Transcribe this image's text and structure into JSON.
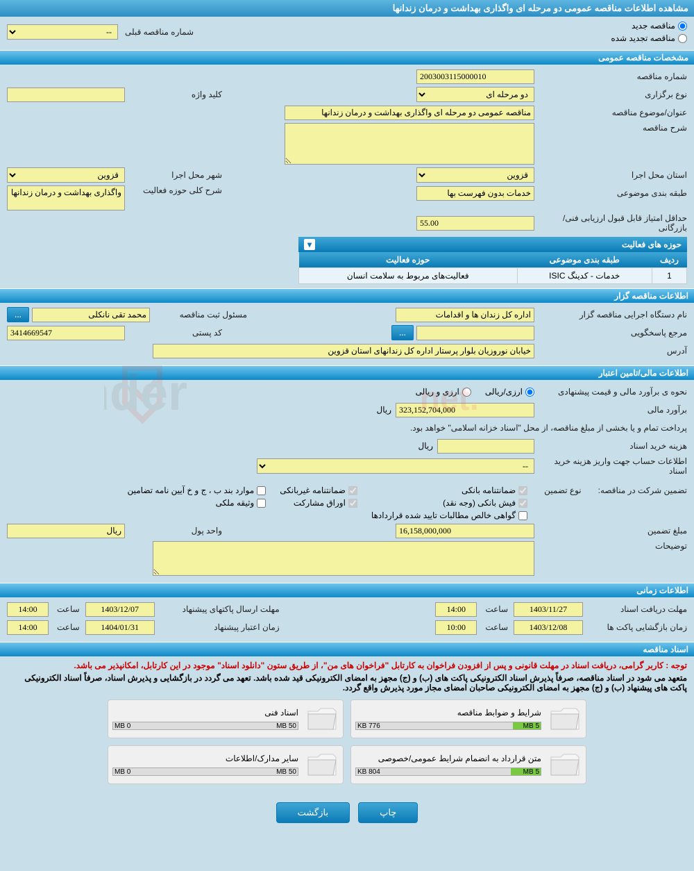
{
  "page_title": "مشاهده اطلاعات مناقصه عمومی دو مرحله ای واگذاری بهداشت و درمان زندانها",
  "tender_type": {
    "new_label": "مناقصه جدید",
    "renewed_label": "مناقصه تجدید شده",
    "prev_number_label": "شماره مناقصه قبلی",
    "prev_number_value": "--"
  },
  "general": {
    "header": "مشخصات مناقصه عمومی",
    "number_label": "شماره مناقصه",
    "number_value": "2003003115000010",
    "type_label": "نوع برگزاری",
    "type_value": "دو مرحله ای",
    "keyword_label": "کلید واژه",
    "keyword_value": "",
    "title_label": "عنوان/موضوع مناقصه",
    "title_value": "مناقصه عمومی دو مرحله ای واگذاری بهداشت و درمان زندانها",
    "description_label": "شرح مناقصه",
    "description_value": "",
    "province_label": "استان محل اجرا",
    "province_value": "قزوین",
    "city_label": "شهر محل اجرا",
    "city_value": "قزوین",
    "classification_label": "طبقه بندی موضوعی",
    "classification_value": "خدمات بدون فهرست بها",
    "activity_scope_label": "شرح کلی حوزه فعالیت",
    "activity_scope_value": "واگذاری بهداشت و درمان زندانها",
    "min_score_label": "حداقل امتیاز قابل قبول ارزیابی فنی/بازرگانی",
    "min_score_value": "55.00",
    "activity_areas_header": "حوزه های فعالیت",
    "activity_table": {
      "col_row": "ردیف",
      "col_classification": "طبقه بندی موضوعی",
      "col_area": "حوزه فعالیت",
      "rows": [
        {
          "row": "1",
          "classification": "خدمات - کدینگ ISIC",
          "area": "فعالیت‌های مربوط به سلامت انسان"
        }
      ]
    }
  },
  "buyer": {
    "header": "اطلاعات مناقصه گزار",
    "org_label": "نام دستگاه اجرایی مناقصه گزار",
    "org_value": "اداره کل زندان ها و اقدامات",
    "registrar_label": "مسئول ثبت مناقصه",
    "registrar_value": "محمد تقی نانکلی",
    "support_label": "مرجع پاسخگویی",
    "postcode_label": "کد پستی",
    "postcode_value": "3414669547",
    "address_label": "آدرس",
    "address_value": "خیابان نوروزیان بلوار پرستار اداره کل زندانهای استان قزوین",
    "ellipsis": "..."
  },
  "financial": {
    "header": "اطلاعات مالی/تامین اعتبار",
    "estimate_method_label": "نحوه ی برآورد مالی و قیمت پیشنهادی",
    "estimate_rial_label": "ارزی/ریالی",
    "estimate_fx_label": "ارزی و ریالی",
    "estimate_label": "برآورد مالی",
    "estimate_value": "323,152,704,000",
    "currency_label": "ریال",
    "payment_note": "پرداخت تمام و یا بخشی از مبلغ مناقصه، از محل \"اسناد خزانه اسلامی\" خواهد بود.",
    "doc_cost_label": "هزینه خرید اسناد",
    "doc_cost_value": "",
    "account_label": "اطلاعات حساب جهت واریز هزینه خرید اسناد",
    "account_value": "--",
    "guarantee_header": "تضمین شرکت در مناقصه:",
    "guarantee_type_label": "نوع تضمین",
    "chk_bank_guarantee": "ضمانتنامه بانکی",
    "chk_nonbank_guarantee": "ضمانتنامه غیربانکی",
    "chk_bond_bjhkh": "موارد بند ب ، ج و خ آیین نامه تضامین",
    "chk_bank_receipt": "فیش بانکی (وجه نقد)",
    "chk_securities": "اوراق مشارکت",
    "chk_property": "وثیقه ملکی",
    "chk_contract_receivable": "گواهی خالص مطالبات تایید شده قراردادها",
    "guarantee_amount_label": "مبلغ تضمین",
    "guarantee_amount_value": "16,158,000,000",
    "currency_unit_label": "واحد پول",
    "currency_unit_value": "ریال",
    "notes_label": "توضیحات",
    "notes_value": ""
  },
  "schedule": {
    "header": "اطلاعات زمانی",
    "doc_receive_label": "مهلت دریافت اسناد",
    "doc_receive_date": "1403/11/27",
    "doc_receive_time": "14:00",
    "bid_submit_label": "مهلت ارسال پاکتهای پیشنهاد",
    "bid_submit_date": "1403/12/07",
    "bid_submit_time": "14:00",
    "bid_open_label": "زمان بازگشایی پاکت ها",
    "bid_open_date": "1403/12/08",
    "bid_open_time": "10:00",
    "validity_label": "زمان اعتبار پیشنهاد",
    "validity_date": "1404/01/31",
    "validity_time": "14:00",
    "time_label": "ساعت"
  },
  "documents": {
    "header": "اسناد مناقصه",
    "warning_line1": "توجه : کاربر گرامی، دریافت اسناد در مهلت قانونی و پس از افزودن فراخوان به کارتابل \"فراخوان های من\"، از طریق ستون \"دانلود اسناد\" موجود در این کارتابل، امکانپذیر می باشد.",
    "warning_line2": "متعهد می شود در اسناد مناقصه، صرفاً پذیرش اسناد الکترونیکی پاکت های (ب) و (ج) مجهز به امضای الکترونیکی قید شده باشد. تعهد می گردد در بازگشایی و پذیرش اسناد، صرفاً اسناد الکترونیکی پاکت های پیشنهاد (ب) و (ج) مجهز به امضای الکترونیکی صاحبان امضای مجاز مورد پذیرش واقع گردد.",
    "files": [
      {
        "title": "شرایط و ضوابط مناقصه",
        "used": "776 KB",
        "total": "5 MB",
        "fill": 15
      },
      {
        "title": "اسناد فنی",
        "used": "0 MB",
        "total": "50 MB",
        "fill": 0
      },
      {
        "title": "متن قرارداد به انضمام شرایط عمومی/خصوصی",
        "used": "804 KB",
        "total": "5 MB",
        "fill": 16
      },
      {
        "title": "سایر مدارک/اطلاعات",
        "used": "0 MB",
        "total": "50 MB",
        "fill": 0
      }
    ]
  },
  "buttons": {
    "print": "چاپ",
    "back": "بازگشت"
  },
  "watermark": "AriaTender.net",
  "styling": {
    "bg_page": "#c8dee8",
    "bg_yellow": "#f4f3a2",
    "bg_header_light": "#6dc4ec",
    "bg_header_dark": "#0e8ac8",
    "bg_tablerow": "#e8f4fa",
    "text_red": "#c00",
    "fill_green": "#7ac943"
  }
}
